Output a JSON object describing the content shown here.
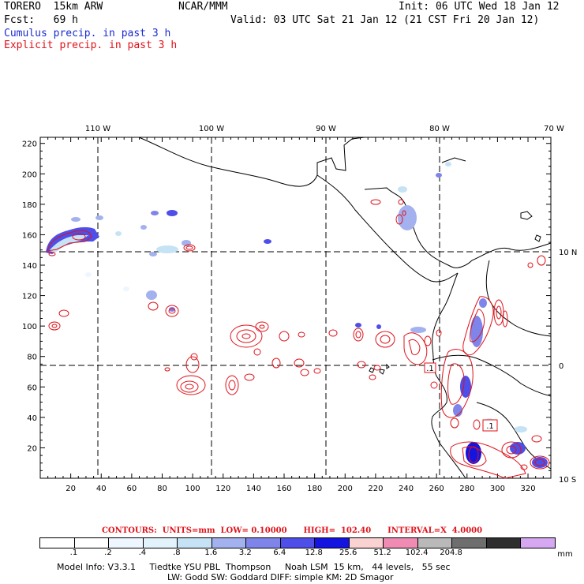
{
  "header": {
    "model": "TORERO  15km ARW",
    "org": "NCAR/MMM",
    "init": "Init: 06 UTC Wed 18 Jan 12",
    "fcst": "Fcst:   69 h",
    "valid": "Valid: 03 UTC Sat 21 Jan 12 (21 CST Fri 20 Jan 12)",
    "legend_cumulus": "Cumulus precip. in past 3 h",
    "legend_explicit": "Explicit precip. in past 3 h"
  },
  "map": {
    "lon_labels": [
      "110 W",
      "100 W",
      "90 W",
      "80 W",
      "70 W"
    ],
    "lat_labels": [
      "10 N",
      "0",
      "10 S"
    ],
    "x_ticks": [
      "20",
      "40",
      "60",
      "80",
      "100",
      "120",
      "140",
      "160",
      "180",
      "200",
      "220",
      "240",
      "260",
      "280",
      "300",
      "320"
    ],
    "y_ticks": [
      "20",
      "40",
      "60",
      "80",
      "100",
      "120",
      "140",
      "160",
      "180",
      "200",
      "220"
    ],
    "station_labels": [
      ".1",
      ".1"
    ],
    "colors": {
      "cumulus": "#2233dd",
      "explicit": "#e0121a",
      "land": "#000000",
      "grid": "#000000"
    }
  },
  "contours": {
    "text": "CONTOURS:  UNITS=mm  LOW= 0.10000      HIGH=  102.40      INTERVAL=X  4.0000"
  },
  "colorbar": {
    "labels": [
      ".1",
      ".2",
      ".4",
      ".8",
      "1.6",
      "3.2",
      "6.4",
      "12.8",
      "25.6",
      "51.2",
      "102.4",
      "204.8"
    ],
    "unit": "mm",
    "colors": [
      "#ffffff",
      "#ffffff",
      "#eef6ff",
      "#e3f3fb",
      "#c6e2f5",
      "#a3b1ee",
      "#7e84ea",
      "#4e4ee8",
      "#1414e0",
      "#fad2d2",
      "#f08cb4",
      "#b9b9b9",
      "#6e6e6e",
      "#2e2e2e",
      "#d6a8f2"
    ]
  },
  "model_info": {
    "line1": "Model Info: V3.3.1     Tiedtke YSU PBL  Thompson     Noah LSM  15 km,   44 levels,   55 sec",
    "line2": "LW: Godd SW: Goddard DIFF: simple KM: 2D Smagor"
  }
}
